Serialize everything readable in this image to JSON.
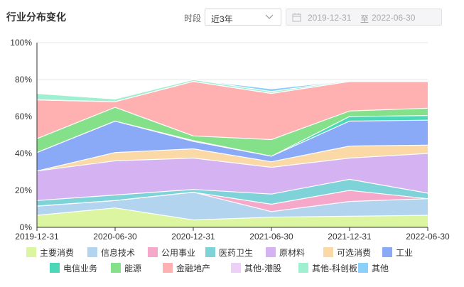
{
  "header": {
    "title": "行业分布变化",
    "period_label": "时段",
    "period_value": "近3年",
    "date_start": "2019-12-31",
    "date_sep": "至",
    "date_end": "2022-06-30"
  },
  "icons": {
    "dropdown": "chevron-down-icon",
    "calendar": "calendar-icon"
  },
  "chart_data": {
    "type": "area",
    "stacked": true,
    "x": [
      "2019-12-31",
      "2020-06-30",
      "2020-12-31",
      "2021-06-30",
      "2021-12-31",
      "2022-06-30"
    ],
    "yticks": [
      "0%",
      "20%",
      "40%",
      "60%",
      "80%",
      "100%"
    ],
    "ylim": [
      0,
      100
    ],
    "grid": true,
    "legend_position": "bottom",
    "series": [
      {
        "name": "主要消费",
        "color": "#dcf5a0",
        "values": [
          6.5,
          10.5,
          4.0,
          5.5,
          6.0,
          6.5
        ]
      },
      {
        "name": "信息技术",
        "color": "#b3d4ef",
        "values": [
          5.0,
          4.0,
          15.0,
          3.0,
          8.0,
          9.0
        ]
      },
      {
        "name": "公用事业",
        "color": "#f5a8c9",
        "values": [
          0.0,
          0.0,
          0.0,
          4.0,
          6.0,
          0.0
        ]
      },
      {
        "name": "医药卫生",
        "color": "#7ed3d8",
        "values": [
          3.0,
          3.0,
          1.5,
          5.5,
          6.0,
          3.0
        ]
      },
      {
        "name": "原材料",
        "color": "#d5b3f2",
        "values": [
          16.0,
          18.5,
          17.0,
          14.5,
          11.5,
          21.5
        ]
      },
      {
        "name": "可选消费",
        "color": "#fbd9a6",
        "values": [
          0.0,
          4.5,
          5.0,
          3.0,
          6.5,
          4.5
        ]
      },
      {
        "name": "工业",
        "color": "#8aaaf8",
        "values": [
          10.0,
          17.0,
          4.0,
          3.0,
          13.5,
          13.5
        ]
      },
      {
        "name": "电信业务",
        "color": "#4cd8b8",
        "values": [
          0.0,
          0.0,
          0.5,
          0.0,
          2.5,
          2.5
        ]
      },
      {
        "name": "能源",
        "color": "#85e08a",
        "values": [
          7.5,
          7.5,
          2.5,
          9.0,
          3.0,
          4.0
        ]
      },
      {
        "name": "金融地产",
        "color": "#ffb0b0",
        "values": [
          21.0,
          3.0,
          29.5,
          25.0,
          16.0,
          14.5
        ]
      },
      {
        "name": "其他-港股",
        "color": "#ecd0f5",
        "values": [
          0.0,
          0.0,
          0.0,
          0.0,
          0.0,
          0.0
        ]
      },
      {
        "name": "其他-科创板",
        "color": "#9ff0d0",
        "values": [
          3.5,
          1.5,
          1.0,
          1.0,
          0.5,
          0.5
        ]
      },
      {
        "name": "其他",
        "color": "#8ad0f8",
        "values": [
          0.0,
          0.0,
          0.0,
          1.5,
          0.0,
          0.0
        ]
      }
    ]
  }
}
